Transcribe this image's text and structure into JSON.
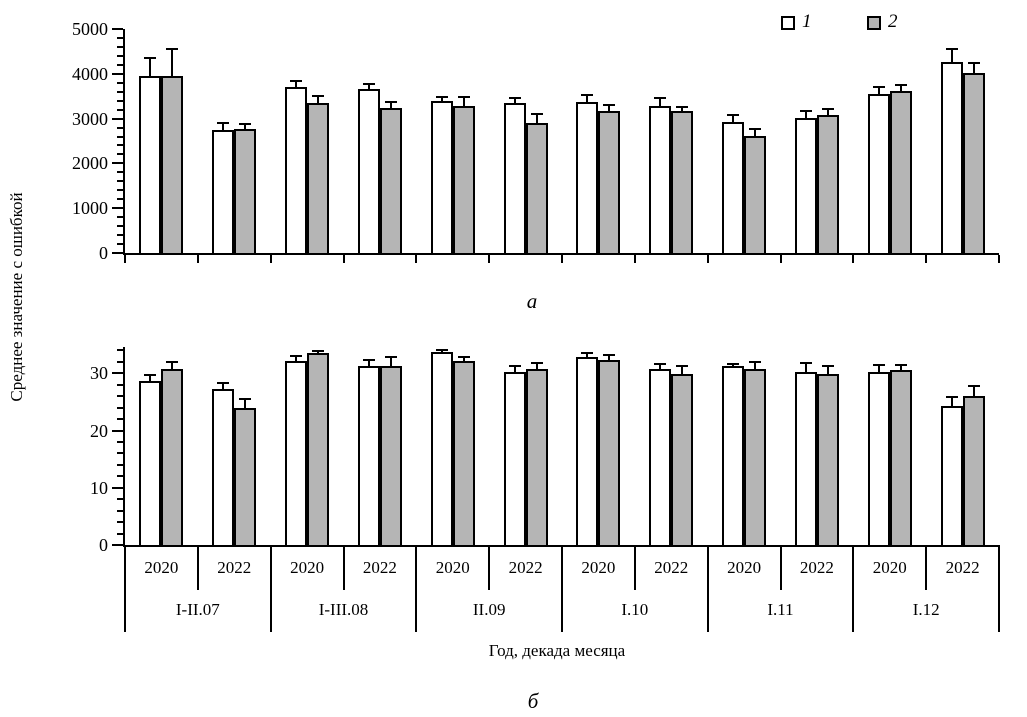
{
  "figure": {
    "ylabel": "Среднее значение с ошибкой",
    "xlabel": "Год, декада месяца",
    "panel_a_label": "а",
    "panel_b_label": "б",
    "legend": {
      "items": [
        {
          "label": "1",
          "color": "#ffffff"
        },
        {
          "label": "2",
          "color": "#b5b5b5"
        }
      ]
    },
    "colors": {
      "bar_white": "#ffffff",
      "bar_gray": "#b5b5b5",
      "axis": "#000000"
    }
  },
  "x_axis_table": {
    "years": [
      "2020",
      "2022"
    ],
    "groups": [
      "I-II.07",
      "I-III.08",
      "II.09",
      "I.10",
      "I.11",
      "I.12"
    ]
  },
  "chart_data": [
    {
      "type": "bar",
      "panel": "а",
      "categories": [
        "I-II.07",
        "I-III.08",
        "II.09",
        "I.10",
        "I.11",
        "I.12"
      ],
      "years_per_category": [
        "2020",
        "2022"
      ],
      "ylim": [
        0,
        5000
      ],
      "yticks": [
        0,
        1000,
        2000,
        3000,
        4000,
        5000
      ],
      "minor_tick_step": 200,
      "grid": false,
      "legend_position": "top-right",
      "series": [
        {
          "name": "1",
          "fill": "#ffffff",
          "values": [
            3950,
            2750,
            3700,
            3650,
            3390,
            3350,
            3360,
            3290,
            2920,
            3020,
            3550,
            4270
          ],
          "errors": [
            400,
            150,
            140,
            130,
            90,
            120,
            170,
            160,
            150,
            160,
            160,
            280
          ]
        },
        {
          "name": "2",
          "fill": "#b5b5b5",
          "values": [
            3950,
            2770,
            3340,
            3230,
            3290,
            2900,
            3180,
            3170,
            2620,
            3090,
            3610,
            4010
          ],
          "errors": [
            600,
            100,
            160,
            130,
            200,
            200,
            130,
            90,
            150,
            130,
            130,
            220
          ]
        }
      ]
    },
    {
      "type": "bar",
      "panel": "б",
      "categories": [
        "I-II.07",
        "I-III.08",
        "II.09",
        "I.10",
        "I.11",
        "I.12"
      ],
      "years_per_category": [
        "2020",
        "2022"
      ],
      "ylim": [
        0,
        35
      ],
      "yticks": [
        0,
        10,
        20,
        30
      ],
      "minor_tick_step": 2,
      "grid": false,
      "series": [
        {
          "name": "1",
          "fill": "#ffffff",
          "values": [
            28.7,
            27.3,
            32.2,
            31.2,
            33.8,
            30.3,
            32.8,
            30.8,
            31.2,
            30.2,
            30.2,
            24.2
          ],
          "errors": [
            1.0,
            1.0,
            0.9,
            1.2,
            0.3,
            1.0,
            0.8,
            0.9,
            0.4,
            1.6,
            1.3,
            1.6
          ]
        },
        {
          "name": "2",
          "fill": "#b5b5b5",
          "values": [
            30.7,
            24.0,
            33.5,
            31.3,
            32.2,
            30.7,
            32.4,
            29.8,
            30.8,
            29.8,
            30.6,
            26.0
          ],
          "errors": [
            1.2,
            1.5,
            0.4,
            1.6,
            0.7,
            1.1,
            0.8,
            1.5,
            1.2,
            1.4,
            0.8,
            1.7
          ]
        }
      ]
    }
  ]
}
